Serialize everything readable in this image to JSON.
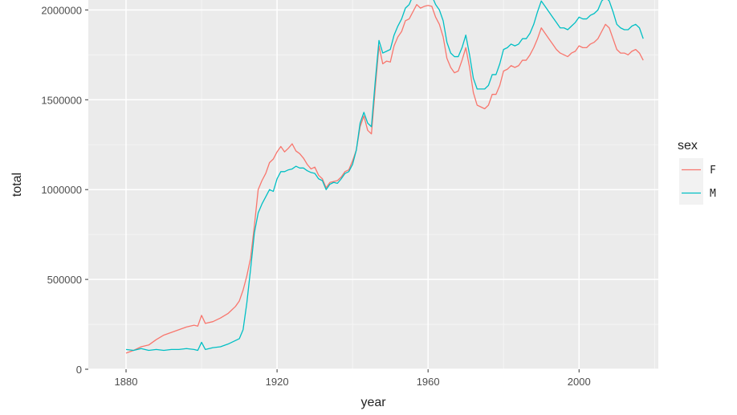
{
  "chart_data": {
    "type": "line",
    "xlabel": "year",
    "ylabel": "total",
    "xlim": [
      1870,
      2021
    ],
    "ylim": [
      0,
      2100000
    ],
    "x_ticks": [
      1880,
      1920,
      1960,
      2000
    ],
    "x_tick_labels": [
      "1880",
      "1920",
      "1960",
      "2000"
    ],
    "y_ticks": [
      0,
      500000,
      1000000,
      1500000,
      2000000
    ],
    "y_tick_labels": [
      "0",
      "500000",
      "1000000",
      "1500000",
      "2000000"
    ],
    "grid": true,
    "background": "#ebebeb",
    "legend": {
      "title": "sex",
      "placement": "right"
    },
    "series": [
      {
        "name": "F",
        "color": "#f8766d",
        "points": [
          [
            1880,
            90000
          ],
          [
            1882,
            105000
          ],
          [
            1884,
            125000
          ],
          [
            1886,
            135000
          ],
          [
            1888,
            165000
          ],
          [
            1890,
            190000
          ],
          [
            1892,
            205000
          ],
          [
            1894,
            220000
          ],
          [
            1896,
            235000
          ],
          [
            1898,
            245000
          ],
          [
            1899,
            240000
          ],
          [
            1900,
            300000
          ],
          [
            1901,
            255000
          ],
          [
            1903,
            265000
          ],
          [
            1905,
            285000
          ],
          [
            1907,
            310000
          ],
          [
            1909,
            350000
          ],
          [
            1910,
            380000
          ],
          [
            1911,
            440000
          ],
          [
            1912,
            520000
          ],
          [
            1913,
            620000
          ],
          [
            1914,
            800000
          ],
          [
            1915,
            1000000
          ],
          [
            1916,
            1050000
          ],
          [
            1917,
            1090000
          ],
          [
            1918,
            1150000
          ],
          [
            1919,
            1170000
          ],
          [
            1920,
            1210000
          ],
          [
            1921,
            1240000
          ],
          [
            1922,
            1210000
          ],
          [
            1923,
            1230000
          ],
          [
            1924,
            1255000
          ],
          [
            1925,
            1215000
          ],
          [
            1926,
            1200000
          ],
          [
            1927,
            1175000
          ],
          [
            1928,
            1140000
          ],
          [
            1929,
            1115000
          ],
          [
            1930,
            1125000
          ],
          [
            1931,
            1080000
          ],
          [
            1932,
            1060000
          ],
          [
            1933,
            1010000
          ],
          [
            1934,
            1040000
          ],
          [
            1935,
            1045000
          ],
          [
            1936,
            1050000
          ],
          [
            1937,
            1070000
          ],
          [
            1938,
            1100000
          ],
          [
            1939,
            1110000
          ],
          [
            1940,
            1160000
          ],
          [
            1941,
            1220000
          ],
          [
            1942,
            1350000
          ],
          [
            1943,
            1410000
          ],
          [
            1944,
            1330000
          ],
          [
            1945,
            1310000
          ],
          [
            1946,
            1560000
          ],
          [
            1947,
            1800000
          ],
          [
            1948,
            1700000
          ],
          [
            1949,
            1715000
          ],
          [
            1950,
            1710000
          ],
          [
            1951,
            1800000
          ],
          [
            1952,
            1850000
          ],
          [
            1953,
            1880000
          ],
          [
            1954,
            1940000
          ],
          [
            1955,
            1950000
          ],
          [
            1956,
            1990000
          ],
          [
            1957,
            2030000
          ],
          [
            1958,
            2010000
          ],
          [
            1959,
            2020000
          ],
          [
            1960,
            2025000
          ],
          [
            1961,
            2020000
          ],
          [
            1962,
            1960000
          ],
          [
            1963,
            1920000
          ],
          [
            1964,
            1850000
          ],
          [
            1965,
            1730000
          ],
          [
            1966,
            1680000
          ],
          [
            1967,
            1650000
          ],
          [
            1968,
            1660000
          ],
          [
            1969,
            1720000
          ],
          [
            1970,
            1790000
          ],
          [
            1971,
            1680000
          ],
          [
            1972,
            1540000
          ],
          [
            1973,
            1470000
          ],
          [
            1974,
            1460000
          ],
          [
            1975,
            1450000
          ],
          [
            1976,
            1470000
          ],
          [
            1977,
            1530000
          ],
          [
            1978,
            1530000
          ],
          [
            1979,
            1580000
          ],
          [
            1980,
            1660000
          ],
          [
            1981,
            1670000
          ],
          [
            1982,
            1690000
          ],
          [
            1983,
            1680000
          ],
          [
            1984,
            1690000
          ],
          [
            1985,
            1720000
          ],
          [
            1986,
            1720000
          ],
          [
            1987,
            1750000
          ],
          [
            1988,
            1790000
          ],
          [
            1989,
            1840000
          ],
          [
            1990,
            1900000
          ],
          [
            1991,
            1870000
          ],
          [
            1992,
            1840000
          ],
          [
            1993,
            1810000
          ],
          [
            1994,
            1780000
          ],
          [
            1995,
            1760000
          ],
          [
            1996,
            1750000
          ],
          [
            1997,
            1740000
          ],
          [
            1998,
            1760000
          ],
          [
            1999,
            1770000
          ],
          [
            2000,
            1800000
          ],
          [
            2001,
            1790000
          ],
          [
            2002,
            1790000
          ],
          [
            2003,
            1810000
          ],
          [
            2004,
            1820000
          ],
          [
            2005,
            1840000
          ],
          [
            2006,
            1880000
          ],
          [
            2007,
            1920000
          ],
          [
            2008,
            1900000
          ],
          [
            2009,
            1840000
          ],
          [
            2010,
            1780000
          ],
          [
            2011,
            1760000
          ],
          [
            2012,
            1760000
          ],
          [
            2013,
            1750000
          ],
          [
            2014,
            1770000
          ],
          [
            2015,
            1780000
          ],
          [
            2016,
            1760000
          ],
          [
            2017,
            1720000
          ]
        ]
      },
      {
        "name": "M",
        "color": "#00bfc4",
        "points": [
          [
            1880,
            110000
          ],
          [
            1882,
            105000
          ],
          [
            1884,
            115000
          ],
          [
            1886,
            105000
          ],
          [
            1888,
            110000
          ],
          [
            1890,
            105000
          ],
          [
            1892,
            110000
          ],
          [
            1894,
            110000
          ],
          [
            1896,
            115000
          ],
          [
            1898,
            110000
          ],
          [
            1899,
            105000
          ],
          [
            1900,
            150000
          ],
          [
            1901,
            110000
          ],
          [
            1903,
            120000
          ],
          [
            1905,
            125000
          ],
          [
            1907,
            140000
          ],
          [
            1909,
            160000
          ],
          [
            1910,
            170000
          ],
          [
            1911,
            220000
          ],
          [
            1912,
            370000
          ],
          [
            1913,
            560000
          ],
          [
            1914,
            760000
          ],
          [
            1915,
            870000
          ],
          [
            1916,
            920000
          ],
          [
            1917,
            960000
          ],
          [
            1918,
            1000000
          ],
          [
            1919,
            990000
          ],
          [
            1920,
            1060000
          ],
          [
            1921,
            1100000
          ],
          [
            1922,
            1100000
          ],
          [
            1923,
            1110000
          ],
          [
            1924,
            1115000
          ],
          [
            1925,
            1130000
          ],
          [
            1926,
            1120000
          ],
          [
            1927,
            1120000
          ],
          [
            1928,
            1105000
          ],
          [
            1929,
            1095000
          ],
          [
            1930,
            1090000
          ],
          [
            1931,
            1060000
          ],
          [
            1932,
            1050000
          ],
          [
            1933,
            1000000
          ],
          [
            1934,
            1030000
          ],
          [
            1935,
            1040000
          ],
          [
            1936,
            1035000
          ],
          [
            1937,
            1060000
          ],
          [
            1938,
            1090000
          ],
          [
            1939,
            1100000
          ],
          [
            1940,
            1140000
          ],
          [
            1941,
            1220000
          ],
          [
            1942,
            1370000
          ],
          [
            1943,
            1430000
          ],
          [
            1944,
            1370000
          ],
          [
            1945,
            1350000
          ],
          [
            1946,
            1600000
          ],
          [
            1947,
            1830000
          ],
          [
            1948,
            1760000
          ],
          [
            1949,
            1770000
          ],
          [
            1950,
            1780000
          ],
          [
            1951,
            1860000
          ],
          [
            1952,
            1910000
          ],
          [
            1953,
            1950000
          ],
          [
            1954,
            2010000
          ],
          [
            1955,
            2030000
          ],
          [
            1956,
            2080000
          ],
          [
            1957,
            2120000
          ],
          [
            1958,
            2110000
          ],
          [
            1959,
            2100000
          ],
          [
            1960,
            2100000
          ],
          [
            1961,
            2080000
          ],
          [
            1962,
            2030000
          ],
          [
            1963,
            2000000
          ],
          [
            1964,
            1940000
          ],
          [
            1965,
            1820000
          ],
          [
            1966,
            1760000
          ],
          [
            1967,
            1740000
          ],
          [
            1968,
            1740000
          ],
          [
            1969,
            1790000
          ],
          [
            1970,
            1860000
          ],
          [
            1971,
            1750000
          ],
          [
            1972,
            1620000
          ],
          [
            1973,
            1560000
          ],
          [
            1974,
            1560000
          ],
          [
            1975,
            1560000
          ],
          [
            1976,
            1580000
          ],
          [
            1977,
            1640000
          ],
          [
            1978,
            1640000
          ],
          [
            1979,
            1700000
          ],
          [
            1980,
            1780000
          ],
          [
            1981,
            1790000
          ],
          [
            1982,
            1810000
          ],
          [
            1983,
            1800000
          ],
          [
            1984,
            1810000
          ],
          [
            1985,
            1840000
          ],
          [
            1986,
            1840000
          ],
          [
            1987,
            1870000
          ],
          [
            1988,
            1920000
          ],
          [
            1989,
            1990000
          ],
          [
            1990,
            2050000
          ],
          [
            1991,
            2020000
          ],
          [
            1992,
            1990000
          ],
          [
            1993,
            1960000
          ],
          [
            1994,
            1930000
          ],
          [
            1995,
            1900000
          ],
          [
            1996,
            1900000
          ],
          [
            1997,
            1890000
          ],
          [
            1998,
            1910000
          ],
          [
            1999,
            1930000
          ],
          [
            2000,
            1960000
          ],
          [
            2001,
            1950000
          ],
          [
            2002,
            1950000
          ],
          [
            2003,
            1970000
          ],
          [
            2004,
            1980000
          ],
          [
            2005,
            2000000
          ],
          [
            2006,
            2050000
          ],
          [
            2007,
            2070000
          ],
          [
            2008,
            2050000
          ],
          [
            2009,
            1990000
          ],
          [
            2010,
            1920000
          ],
          [
            2011,
            1900000
          ],
          [
            2012,
            1890000
          ],
          [
            2013,
            1890000
          ],
          [
            2014,
            1910000
          ],
          [
            2015,
            1920000
          ],
          [
            2016,
            1900000
          ],
          [
            2017,
            1840000
          ]
        ]
      }
    ]
  }
}
